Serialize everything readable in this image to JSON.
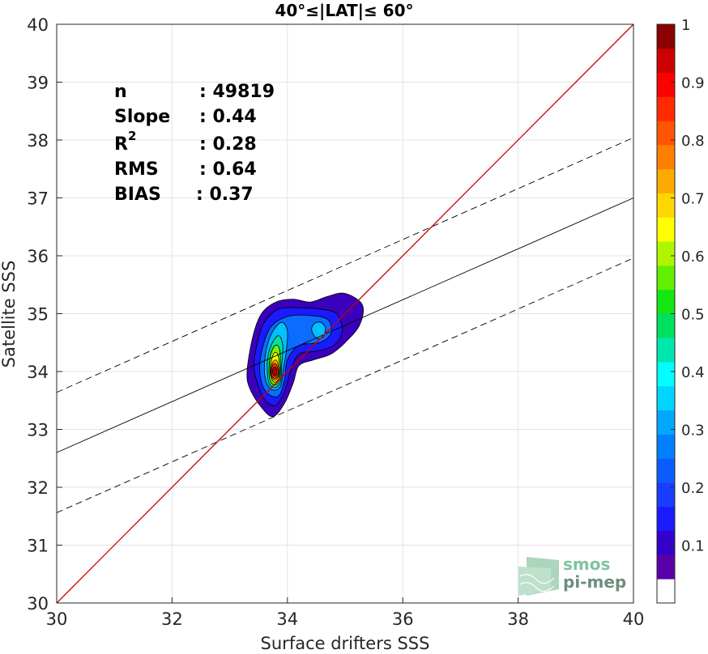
{
  "chart_data": {
    "type": "contour-scatter",
    "title": "40°≤|LAT|≤ 60°",
    "xlabel": "Surface drifters SSS",
    "ylabel": "Satellite SSS",
    "xlim": [
      30,
      40
    ],
    "ylim": [
      30,
      40
    ],
    "xticks": [
      30,
      32,
      34,
      36,
      38,
      40
    ],
    "yticks": [
      30,
      31,
      32,
      33,
      34,
      35,
      36,
      37,
      38,
      39,
      40
    ],
    "grid": true,
    "stats": [
      {
        "label": "n",
        "sep": ": 49819"
      },
      {
        "label": "Slope",
        "sep": ": 0.44"
      },
      {
        "label": "R",
        "sup": "2",
        "sep": ": 0.28"
      },
      {
        "label": "RMS",
        "sep": ": 0.64"
      },
      {
        "label": "BIAS",
        "sep": ": 0.37"
      }
    ],
    "lines": {
      "identity": {
        "x": [
          30,
          40
        ],
        "y": [
          30,
          40
        ],
        "color": "#cc0000"
      },
      "fit": {
        "x": [
          30,
          40
        ],
        "y": [
          32.6,
          37.0
        ],
        "color": "#000000"
      },
      "upper_bound": {
        "x": [
          30,
          40
        ],
        "y": [
          33.64,
          38.04
        ],
        "color": "#000000"
      },
      "lower_bound": {
        "x": [
          30,
          40
        ],
        "y": [
          31.56,
          35.96
        ],
        "color": "#000000"
      }
    },
    "density_peak": {
      "x": 33.75,
      "y": 34.0
    },
    "colorbar": {
      "ticks": [
        "0.1",
        "0.2",
        "0.3",
        "0.4",
        "0.5",
        "0.6",
        "0.7",
        "0.8",
        "0.9",
        "1"
      ],
      "range": [
        0,
        1
      ],
      "colors": [
        "#ffffff",
        "#5a00a8",
        "#3300cc",
        "#1a1aff",
        "#1a3cff",
        "#0b5cff",
        "#0080ff",
        "#00a8ff",
        "#00d4ff",
        "#00ffff",
        "#00e6b0",
        "#00e060",
        "#14e614",
        "#60f000",
        "#b0f500",
        "#ffff00",
        "#ffd700",
        "#ffaa00",
        "#ff7f00",
        "#ff5500",
        "#ff2a00",
        "#ff0000",
        "#cc0000",
        "#8b0000"
      ]
    },
    "contour_levels": [
      {
        "level": 0.05,
        "color": "#3a00bb",
        "pts": [
          [
            33.3,
            34.0
          ],
          [
            33.35,
            33.7
          ],
          [
            33.55,
            33.38
          ],
          [
            33.75,
            33.22
          ],
          [
            33.95,
            33.45
          ],
          [
            34.1,
            33.8
          ],
          [
            34.2,
            34.1
          ],
          [
            34.45,
            34.2
          ],
          [
            34.75,
            34.3
          ],
          [
            35.0,
            34.5
          ],
          [
            35.25,
            34.8
          ],
          [
            35.3,
            35.15
          ],
          [
            35.0,
            35.35
          ],
          [
            34.7,
            35.3
          ],
          [
            34.4,
            35.2
          ],
          [
            34.1,
            35.25
          ],
          [
            33.8,
            35.2
          ],
          [
            33.55,
            35.0
          ],
          [
            33.4,
            34.6
          ]
        ]
      },
      {
        "level": 0.15,
        "color": "#1a1aff",
        "pts": [
          [
            33.42,
            34.1
          ],
          [
            33.48,
            33.8
          ],
          [
            33.62,
            33.5
          ],
          [
            33.8,
            33.42
          ],
          [
            33.95,
            33.65
          ],
          [
            34.05,
            34.0
          ],
          [
            34.2,
            34.3
          ],
          [
            34.5,
            34.35
          ],
          [
            34.8,
            34.45
          ],
          [
            34.95,
            34.7
          ],
          [
            34.85,
            35.0
          ],
          [
            34.55,
            35.08
          ],
          [
            34.2,
            35.1
          ],
          [
            33.85,
            35.08
          ],
          [
            33.6,
            34.85
          ],
          [
            33.48,
            34.5
          ]
        ]
      },
      {
        "level": 0.25,
        "color": "#0b6cff",
        "pts": [
          [
            33.52,
            34.1
          ],
          [
            33.56,
            33.78
          ],
          [
            33.68,
            33.6
          ],
          [
            33.85,
            33.58
          ],
          [
            33.95,
            33.85
          ],
          [
            34.0,
            34.2
          ],
          [
            34.2,
            34.45
          ],
          [
            34.55,
            34.5
          ],
          [
            34.75,
            34.65
          ],
          [
            34.7,
            34.9
          ],
          [
            34.35,
            34.97
          ],
          [
            34.0,
            34.95
          ],
          [
            33.72,
            34.78
          ],
          [
            33.58,
            34.45
          ]
        ]
      },
      {
        "level": 0.35,
        "color": "#00c0ff",
        "pts": [
          [
            33.6,
            34.05
          ],
          [
            33.64,
            33.8
          ],
          [
            33.75,
            33.68
          ],
          [
            33.88,
            33.75
          ],
          [
            33.93,
            34.05
          ],
          [
            33.98,
            34.35
          ],
          [
            34.0,
            34.7
          ],
          [
            33.9,
            34.85
          ],
          [
            33.75,
            34.7
          ],
          [
            33.64,
            34.4
          ]
        ]
      },
      {
        "level": 0.45,
        "color": "#00e0a0",
        "pts": [
          [
            33.65,
            34.05
          ],
          [
            33.68,
            33.8
          ],
          [
            33.78,
            33.72
          ],
          [
            33.88,
            33.82
          ],
          [
            33.9,
            34.1
          ],
          [
            33.92,
            34.45
          ],
          [
            33.85,
            34.62
          ],
          [
            33.74,
            34.5
          ],
          [
            33.67,
            34.3
          ]
        ]
      },
      {
        "level": 0.55,
        "color": "#80f000",
        "pts": [
          [
            33.68,
            34.0
          ],
          [
            33.71,
            33.82
          ],
          [
            33.8,
            33.77
          ],
          [
            33.87,
            33.88
          ],
          [
            33.88,
            34.15
          ],
          [
            33.86,
            34.4
          ],
          [
            33.79,
            34.45
          ],
          [
            33.71,
            34.3
          ]
        ]
      },
      {
        "level": 0.65,
        "color": "#ffff00",
        "pts": [
          [
            33.7,
            34.0
          ],
          [
            33.73,
            33.86
          ],
          [
            33.8,
            33.82
          ],
          [
            33.86,
            33.92
          ],
          [
            33.86,
            34.12
          ],
          [
            33.83,
            34.3
          ],
          [
            33.77,
            34.32
          ],
          [
            33.72,
            34.18
          ]
        ]
      },
      {
        "level": 0.75,
        "color": "#ffaa00",
        "pts": [
          [
            33.71,
            34.0
          ],
          [
            33.74,
            33.88
          ],
          [
            33.8,
            33.86
          ],
          [
            33.85,
            33.95
          ],
          [
            33.84,
            34.12
          ],
          [
            33.8,
            34.2
          ],
          [
            33.74,
            34.15
          ]
        ]
      },
      {
        "level": 0.85,
        "color": "#ff3300",
        "pts": [
          [
            33.72,
            34.0
          ],
          [
            33.75,
            33.9
          ],
          [
            33.8,
            33.89
          ],
          [
            33.84,
            33.97
          ],
          [
            33.82,
            34.1
          ],
          [
            33.78,
            34.14
          ],
          [
            33.74,
            34.1
          ]
        ]
      },
      {
        "level": 0.95,
        "color": "#b00000",
        "pts": [
          [
            33.74,
            34.0
          ],
          [
            33.77,
            33.93
          ],
          [
            33.8,
            33.94
          ],
          [
            33.82,
            34.0
          ],
          [
            33.8,
            34.07
          ],
          [
            33.76,
            34.07
          ]
        ]
      }
    ],
    "secondary_blob": {
      "level": 0.35,
      "color": "#00c0ff",
      "pts": [
        [
          34.42,
          34.72
        ],
        [
          34.5,
          34.58
        ],
        [
          34.62,
          34.6
        ],
        [
          34.66,
          34.75
        ],
        [
          34.58,
          34.85
        ],
        [
          34.47,
          34.83
        ]
      ]
    }
  },
  "logo": {
    "line1": "smos",
    "line2": "pi-mep"
  }
}
